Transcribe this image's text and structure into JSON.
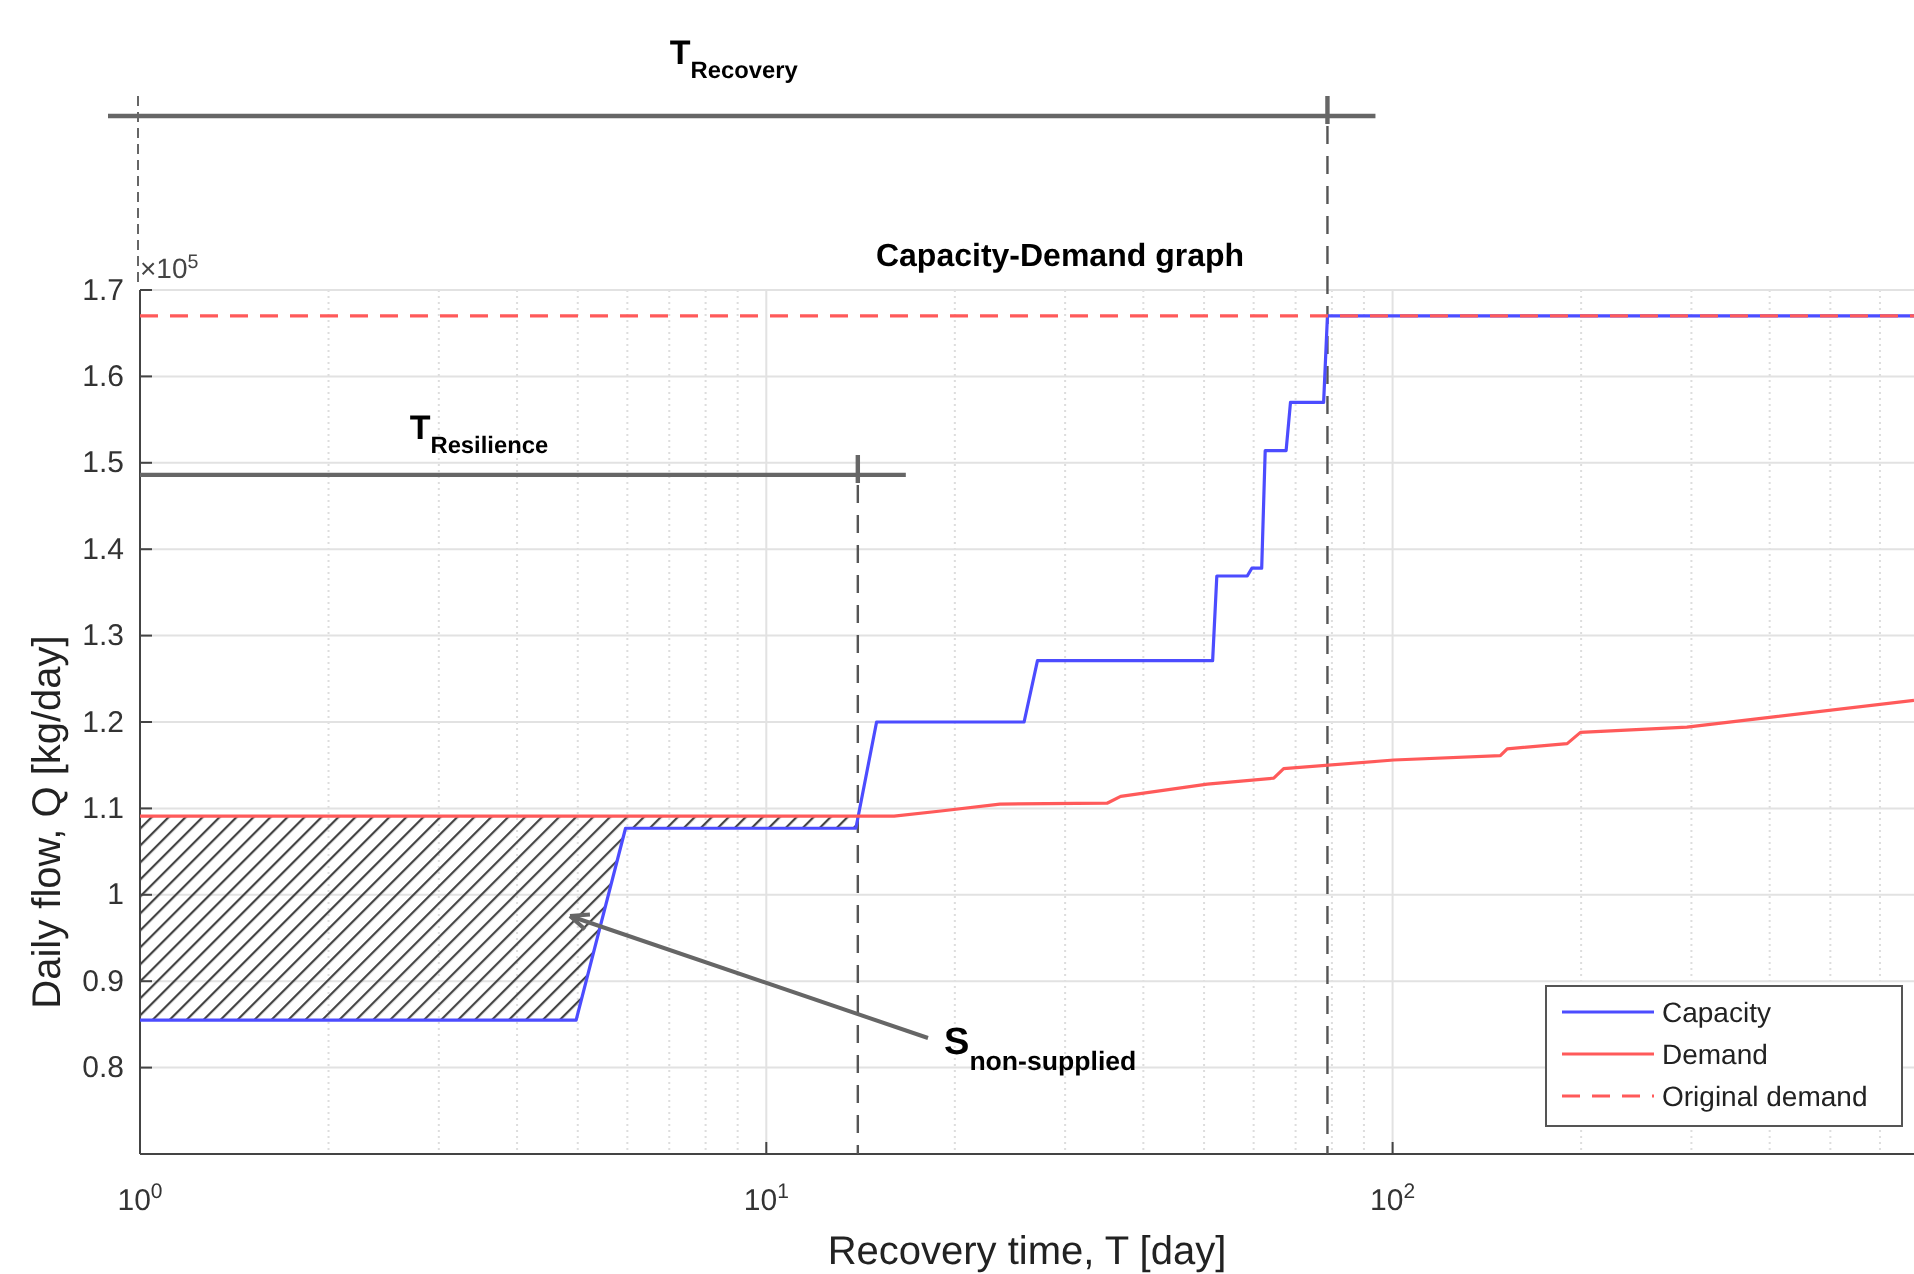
{
  "chart_data": {
    "type": "line",
    "title": "Capacity-Demand graph",
    "xlabel": "Recovery time, T [day]",
    "ylabel": "Daily flow, Q [kg/day]",
    "log": "x",
    "grid": true,
    "legend": "bottom right",
    "line_style": "solid",
    "marker": "none",
    "xlim": [
      1,
      680
    ],
    "xticks": [
      {
        "value": 1,
        "label": "10$^{0}$"
      },
      {
        "value": 10,
        "label": "10$^{1}$"
      },
      {
        "value": 100,
        "label": "10$^{2}$"
      }
    ],
    "ylim": [
      0.7,
      1.7
    ],
    "yticks": [
      0.8,
      0.9,
      1,
      1.1,
      1.2,
      1.3,
      1.4,
      1.5,
      1.6,
      1.7
    ],
    "series": [
      {
        "name": "Capacity",
        "color": "#4c4cff",
        "x": [
          1,
          4.97,
          5.96,
          13.9,
          15.0,
          25.8,
          27.1,
          51.6,
          52.4,
          58.6,
          59.6,
          61.8,
          62.6,
          67.6,
          68.7,
          77.6,
          78.7,
          680
        ],
        "values": [
          0.855,
          0.855,
          1.077,
          1.077,
          1.2,
          1.2,
          1.271,
          1.271,
          1.369,
          1.369,
          1.378,
          1.378,
          1.514,
          1.514,
          1.57,
          1.57,
          1.67,
          1.67
        ]
      },
      {
        "name": "Demand",
        "color": "#ff5a5a",
        "x": [
          1,
          16,
          19.0,
          23.6,
          35.0,
          36.8,
          50.6,
          64.6,
          67.0,
          100.4,
          148.6,
          152.4,
          190,
          199.5,
          295,
          406,
          680
        ],
        "values": [
          1.091,
          1.091,
          1.097,
          1.105,
          1.106,
          1.114,
          1.128,
          1.135,
          1.146,
          1.156,
          1.161,
          1.169,
          1.175,
          1.188,
          1.194,
          1.206,
          1.225
        ]
      },
      {
        "name": "Original demand",
        "color": "#ff5a5a",
        "line_style": "dashed",
        "x": [
          1,
          680
        ],
        "values": [
          1.67,
          1.67
        ]
      }
    ],
    "ref_lines": [
      {
        "axis": "x",
        "value": 14,
        "line_style": "dashed",
        "color": "#555555"
      },
      {
        "axis": "x",
        "value": 78.7,
        "line_style": "dashed",
        "color": "#555555"
      }
    ],
    "annotations": [
      "×10$^{5}$",
      "S$_{non-supplied}$",
      "T$_{Resilience}$",
      "T$_{Recovery}$"
    ]
  }
}
